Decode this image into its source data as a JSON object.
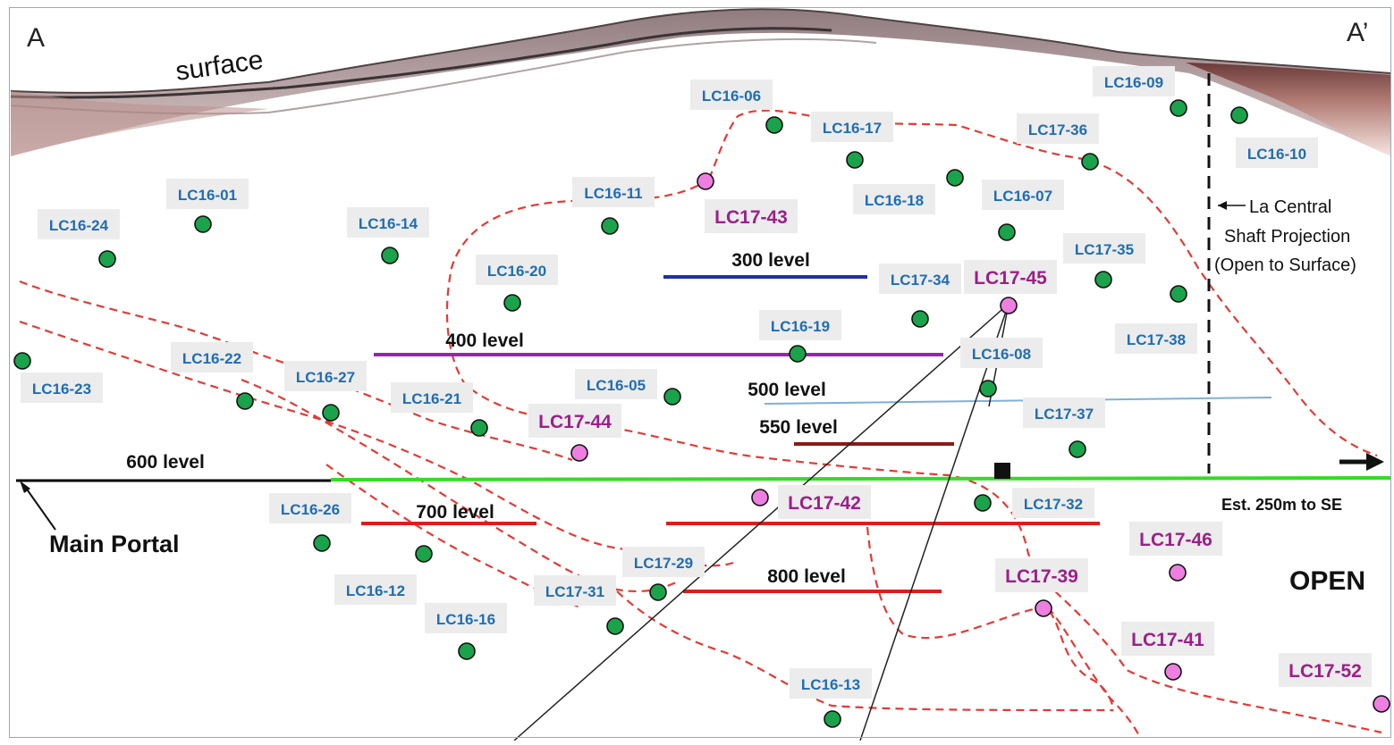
{
  "section": {
    "start_label": "A",
    "end_label": "A’",
    "surface_label": "surface",
    "main_portal_label": "Main Portal",
    "shaft_label_lines": [
      "La Central",
      "Shaft Projection",
      "(Open to Surface)"
    ],
    "se_label": "Est. 250m to SE",
    "open_label": "OPEN"
  },
  "colors": {
    "existing_hole": "#1aa34a",
    "new_hole": "#ee7fe0",
    "hole_label": "#1f6db3",
    "new_hole_label": "#9c1f8a",
    "vein_outline": "#e53935",
    "level_300": "#1f2fa8",
    "level_400": "#9b22b0",
    "level_500": "#7eb0d6",
    "level_550": "#8b1a1a",
    "level_600": "#33dd22",
    "level_700": "#dd1d1d",
    "level_800": "#dd1d1d"
  },
  "levels": [
    {
      "id": "300",
      "label": "300 level"
    },
    {
      "id": "400",
      "label": "400 level"
    },
    {
      "id": "500",
      "label": "500 level"
    },
    {
      "id": "550",
      "label": "550 level"
    },
    {
      "id": "600",
      "label": "600 level"
    },
    {
      "id": "700",
      "label": "700 level"
    },
    {
      "id": "800",
      "label": "800 level"
    }
  ],
  "drill_holes": [
    {
      "id": "LC16-01",
      "type": "existing"
    },
    {
      "id": "LC16-24",
      "type": "existing"
    },
    {
      "id": "LC16-14",
      "type": "existing"
    },
    {
      "id": "LC16-11",
      "type": "existing"
    },
    {
      "id": "LC16-06",
      "type": "existing"
    },
    {
      "id": "LC16-17",
      "type": "existing"
    },
    {
      "id": "LC16-18",
      "type": "existing"
    },
    {
      "id": "LC17-36",
      "type": "existing"
    },
    {
      "id": "LC16-09",
      "type": "existing"
    },
    {
      "id": "LC16-10",
      "type": "existing"
    },
    {
      "id": "LC16-07",
      "type": "existing"
    },
    {
      "id": "LC16-20",
      "type": "existing"
    },
    {
      "id": "LC17-34",
      "type": "existing"
    },
    {
      "id": "LC17-35",
      "type": "existing"
    },
    {
      "id": "LC17-38",
      "type": "existing"
    },
    {
      "id": "LC16-19",
      "type": "existing"
    },
    {
      "id": "LC16-08",
      "type": "existing"
    },
    {
      "id": "LC16-22",
      "type": "existing"
    },
    {
      "id": "LC16-23",
      "type": "existing"
    },
    {
      "id": "LC16-27",
      "type": "existing"
    },
    {
      "id": "LC16-21",
      "type": "existing"
    },
    {
      "id": "LC16-05",
      "type": "existing"
    },
    {
      "id": "LC17-37",
      "type": "existing"
    },
    {
      "id": "LC16-26",
      "type": "existing"
    },
    {
      "id": "LC17-32",
      "type": "existing"
    },
    {
      "id": "LC16-12",
      "type": "existing"
    },
    {
      "id": "LC16-16",
      "type": "existing"
    },
    {
      "id": "LC17-31",
      "type": "existing"
    },
    {
      "id": "LC17-29",
      "type": "existing"
    },
    {
      "id": "LC16-13",
      "type": "existing"
    },
    {
      "id": "LC17-43",
      "type": "new"
    },
    {
      "id": "LC17-45",
      "type": "new"
    },
    {
      "id": "LC17-44",
      "type": "new"
    },
    {
      "id": "LC17-42",
      "type": "new"
    },
    {
      "id": "LC17-46",
      "type": "new"
    },
    {
      "id": "LC17-39",
      "type": "new"
    },
    {
      "id": "LC17-41",
      "type": "new"
    },
    {
      "id": "LC17-52",
      "type": "new"
    }
  ]
}
